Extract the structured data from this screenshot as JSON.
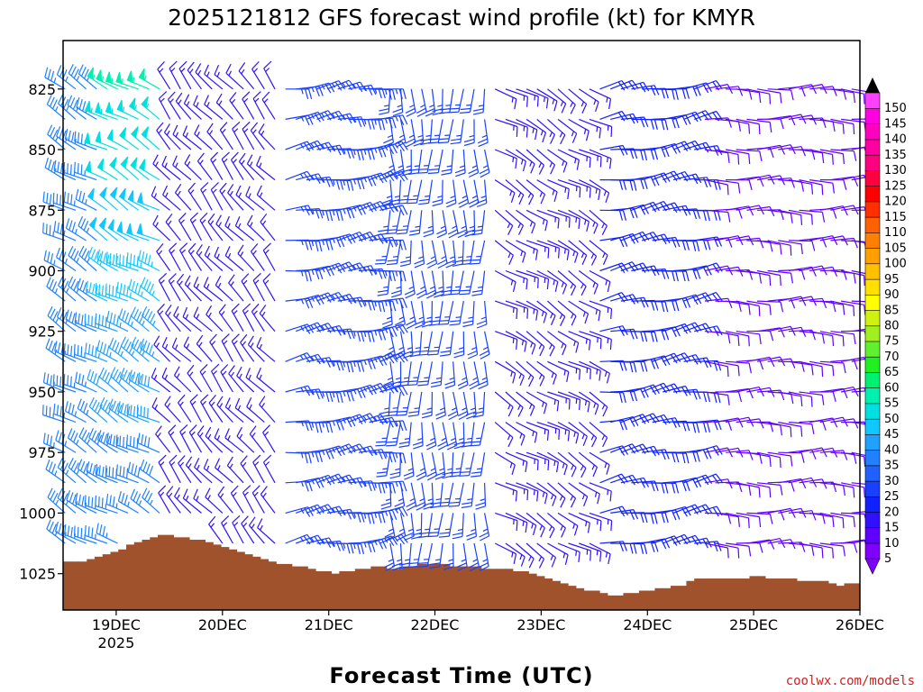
{
  "chart_data": {
    "type": "wind-barb-profile",
    "title": "2025121812 GFS forecast wind profile (kt) for KMYR",
    "xlabel": "Forecast Time (UTC)",
    "credit": "coolwx.com/models",
    "units": "kt",
    "x_ticks": [
      {
        "t": 0.5,
        "label": "19DEC",
        "sub": "2025"
      },
      {
        "t": 1.5,
        "label": "20DEC",
        "sub": ""
      },
      {
        "t": 2.5,
        "label": "21DEC",
        "sub": ""
      },
      {
        "t": 3.5,
        "label": "22DEC",
        "sub": ""
      },
      {
        "t": 4.5,
        "label": "23DEC",
        "sub": ""
      },
      {
        "t": 5.5,
        "label": "24DEC",
        "sub": ""
      },
      {
        "t": 6.5,
        "label": "25DEC",
        "sub": ""
      },
      {
        "t": 7.5,
        "label": "26DEC",
        "sub": ""
      }
    ],
    "xlim_days": [
      0,
      7.5
    ],
    "y_ticks": [
      825,
      850,
      875,
      900,
      925,
      950,
      975,
      1000,
      1025
    ],
    "ylim_hpa": [
      805,
      1040
    ],
    "levels_hpa": [
      825,
      837.5,
      850,
      862.5,
      875,
      887.5,
      900,
      912.5,
      925,
      937.5,
      950,
      962.5,
      975,
      987.5,
      1000,
      1012.5
    ],
    "surface_pressure_hpa": [
      1020,
      1020,
      1020,
      1019,
      1018,
      1017,
      1016,
      1015,
      1013,
      1012,
      1011,
      1010,
      1009,
      1009,
      1010,
      1010,
      1011,
      1011,
      1012,
      1013,
      1014,
      1015,
      1016,
      1017,
      1018,
      1019,
      1020,
      1021,
      1021,
      1022,
      1022,
      1023,
      1024,
      1024,
      1025,
      1024,
      1024,
      1023,
      1023,
      1022,
      1022,
      1023,
      1023,
      1022,
      1022,
      1021,
      1021,
      1021,
      1021,
      1022,
      1022,
      1022,
      1022,
      1023,
      1023,
      1023,
      1023,
      1024,
      1024,
      1025,
      1026,
      1027,
      1028,
      1029,
      1030,
      1031,
      1032,
      1032,
      1033,
      1034,
      1034,
      1033,
      1033,
      1032,
      1032,
      1031,
      1031,
      1030,
      1030,
      1028,
      1027,
      1027,
      1027,
      1027,
      1027,
      1027,
      1027,
      1026,
      1026,
      1027,
      1027,
      1027,
      1027,
      1028,
      1028,
      1028,
      1028,
      1029,
      1030,
      1029,
      1029
    ],
    "colorbar": {
      "levels": [
        5,
        10,
        15,
        20,
        25,
        30,
        35,
        40,
        45,
        50,
        55,
        60,
        65,
        70,
        75,
        80,
        85,
        90,
        95,
        100,
        105,
        110,
        115,
        120,
        125,
        130,
        135,
        140,
        145,
        150
      ],
      "colors": [
        "#8000ff",
        "#6000ff",
        "#3010ff",
        "#1020ff",
        "#1a40ff",
        "#2060ff",
        "#2080ff",
        "#20a0ff",
        "#10c8ff",
        "#00e0e0",
        "#00f0b0",
        "#00f070",
        "#20f020",
        "#60f030",
        "#a0f020",
        "#d0f010",
        "#ffff00",
        "#ffe000",
        "#ffc000",
        "#ffa000",
        "#ff8000",
        "#ff6000",
        "#ff3000",
        "#ff0000",
        "#ff0040",
        "#ff0080",
        "#ff00a0",
        "#ff00c0",
        "#ff00e0",
        "#ff40ff"
      ]
    },
    "surface_color": "#a0522d",
    "wind_regimes": [
      {
        "t0": 0.0,
        "t1": 1.0,
        "speed": 35,
        "speed_jet": 55,
        "dir": 300
      },
      {
        "t0": 1.0,
        "t1": 2.0,
        "speed": 15,
        "dir": 320
      },
      {
        "t0": 2.0,
        "t1": 3.0,
        "speed": 25,
        "dir": 80
      },
      {
        "t0": 3.0,
        "t1": 4.0,
        "speed": 25,
        "dir": 180
      },
      {
        "t0": 4.0,
        "t1": 5.0,
        "speed": 15,
        "dir": 120
      },
      {
        "t0": 5.0,
        "t1": 6.0,
        "speed": 20,
        "dir": 80
      },
      {
        "t0": 6.0,
        "t1": 7.5,
        "speed": 12,
        "dir": 90
      }
    ]
  }
}
